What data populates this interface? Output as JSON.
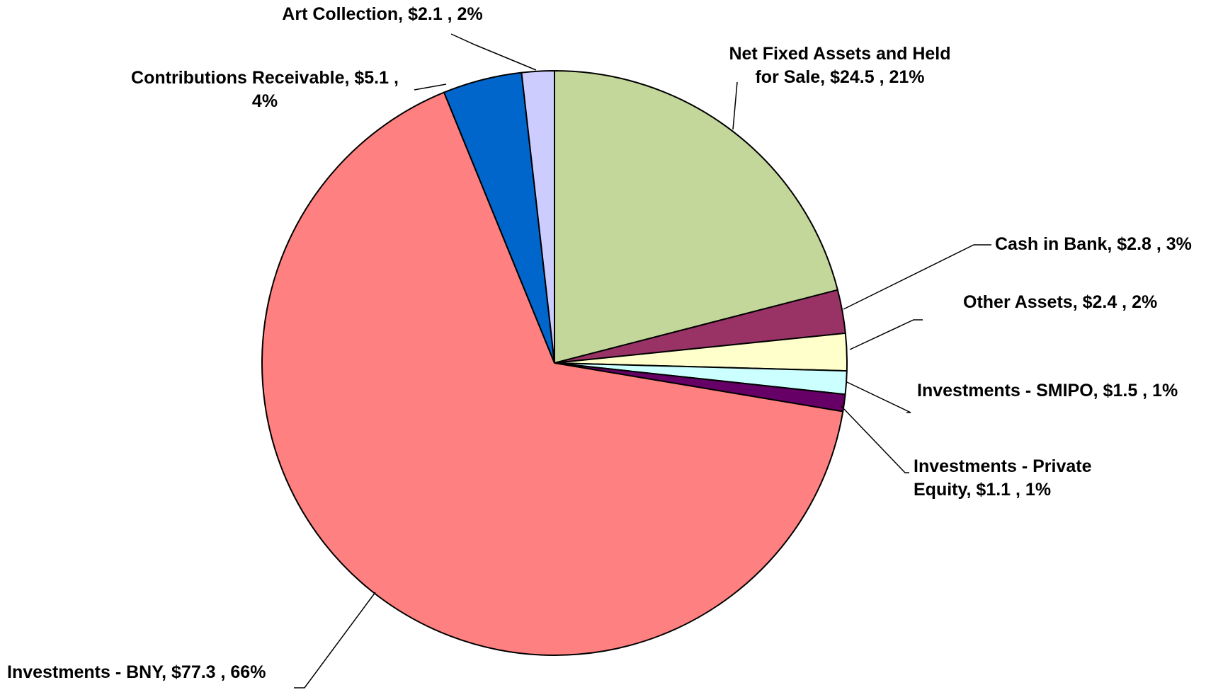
{
  "chart_data": {
    "type": "pie",
    "title": "",
    "units": "$",
    "slices": [
      {
        "label": "Net Fixed Assets and Held for Sale",
        "value": 24.5,
        "percent": "21%",
        "color": "#C4D79B",
        "label_lines": [
          "Net Fixed Assets and Held",
          "for Sale,  $24.5 , 21%"
        ]
      },
      {
        "label": "Cash in Bank",
        "value": 2.8,
        "percent": "3%",
        "color": "#993366",
        "label_lines": [
          "Cash in Bank,  $2.8 , 3%"
        ]
      },
      {
        "label": "Other Assets",
        "value": 2.4,
        "percent": "2%",
        "color": "#FFFFCC",
        "label_lines": [
          "Other Assets,  $2.4 , 2%"
        ]
      },
      {
        "label": "Investments - SMIPO",
        "value": 1.5,
        "percent": "1%",
        "color": "#CCFFFF",
        "label_lines": [
          "Investments - SMIPO,  $1.5 , 1%"
        ]
      },
      {
        "label": "Investments - Private Equity",
        "value": 1.1,
        "percent": "1%",
        "color": "#660066",
        "label_lines": [
          "Investments - Private",
          "Equity,  $1.1 , 1%"
        ]
      },
      {
        "label": "Investments - BNY",
        "value": 77.3,
        "percent": "66%",
        "color": "#FF8080",
        "label_lines": [
          "Investments - BNY,  $77.3 , 66%"
        ]
      },
      {
        "label": "Contributions Receivable",
        "value": 5.1,
        "percent": "4%",
        "color": "#0066CC",
        "label_lines": [
          "Contributions Receivable,  $5.1 ,",
          "4%"
        ]
      },
      {
        "label": "Art Collection",
        "value": 2.1,
        "percent": "2%",
        "color": "#CCCCFF",
        "label_lines": [
          "Art Collection,  $2.1 , 2%"
        ]
      }
    ]
  }
}
